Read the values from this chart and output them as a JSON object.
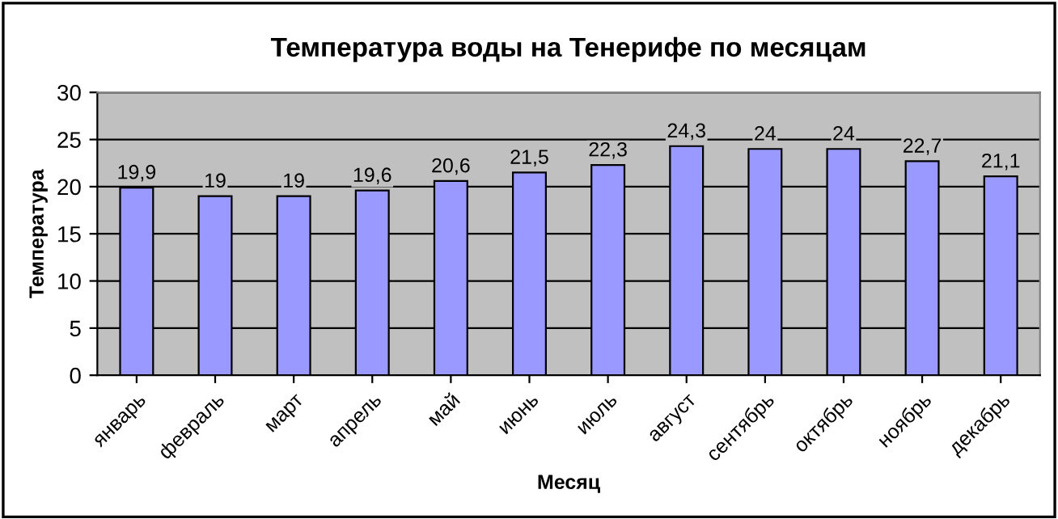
{
  "chart_data": {
    "type": "bar",
    "title": "Температура воды на Тенерифе по месяцам",
    "xlabel": "Месяц",
    "ylabel": "Температура",
    "categories": [
      "январь",
      "февраль",
      "март",
      "апрель",
      "май",
      "июнь",
      "июль",
      "август",
      "сентябрь",
      "октябрь",
      "ноябрь",
      "декабрь"
    ],
    "values": [
      19.9,
      19,
      19,
      19.6,
      20.6,
      21.5,
      22.3,
      24.3,
      24,
      24,
      22.7,
      21.1
    ],
    "value_labels": [
      "19,9",
      "19",
      "19",
      "19,6",
      "20,6",
      "21,5",
      "22,3",
      "24,3",
      "24",
      "24",
      "22,7",
      "21,1"
    ],
    "color": "#9999ff",
    "ylim": [
      0,
      30
    ],
    "yticks": [
      0,
      5,
      10,
      15,
      20,
      25,
      30
    ],
    "grid": "y",
    "legend": false
  }
}
